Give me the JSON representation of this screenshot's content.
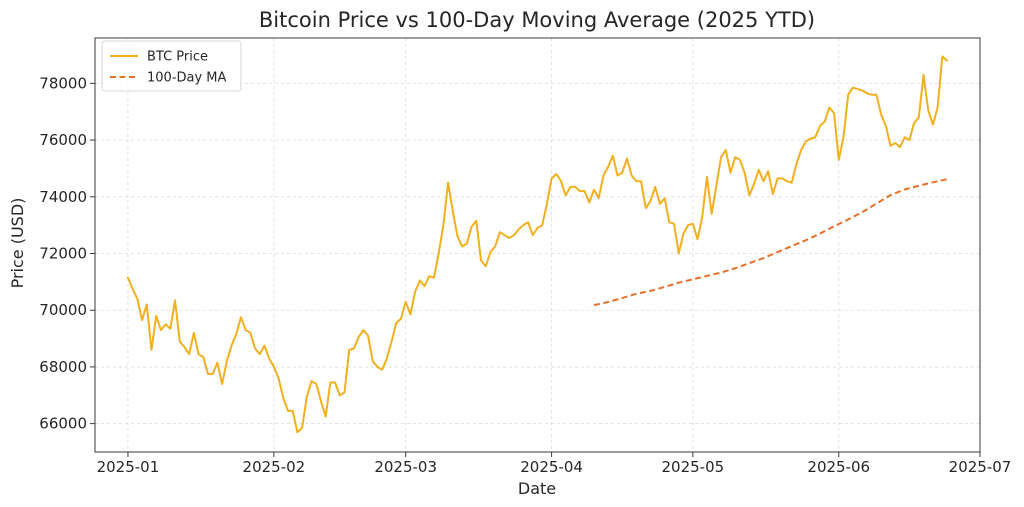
{
  "chart_data": {
    "type": "line",
    "title": "Bitcoin Price vs 100-Day Moving Average (2025 YTD)",
    "xlabel": "Date",
    "ylabel": "Price (USD)",
    "grid": true,
    "legend_position": "top-left",
    "xlim": [
      "2024-12-25",
      "2025-07-01"
    ],
    "ylim": [
      65000,
      79600
    ],
    "x_ticks": [
      "2025-01-01",
      "2025-02-01",
      "2025-03-01",
      "2025-04-01",
      "2025-05-01",
      "2025-06-01",
      "2025-07-01"
    ],
    "x_tick_labels": [
      "2025-01",
      "2025-02",
      "2025-03",
      "2025-04",
      "2025-05",
      "2025-06",
      "2025-07"
    ],
    "y_ticks": [
      66000,
      68000,
      70000,
      72000,
      74000,
      76000,
      78000
    ],
    "y_tick_labels": [
      "66000",
      "68000",
      "70000",
      "72000",
      "74000",
      "76000",
      "78000"
    ],
    "series": [
      {
        "name": "BTC Price",
        "color": "#f2b01e",
        "style": "solid",
        "x": [
          "2025-01-01",
          "2025-01-02",
          "2025-01-03",
          "2025-01-04",
          "2025-01-05",
          "2025-01-06",
          "2025-01-07",
          "2025-01-08",
          "2025-01-09",
          "2025-01-10",
          "2025-01-11",
          "2025-01-12",
          "2025-01-13",
          "2025-01-14",
          "2025-01-15",
          "2025-01-16",
          "2025-01-17",
          "2025-01-18",
          "2025-01-19",
          "2025-01-20",
          "2025-01-21",
          "2025-01-22",
          "2025-01-23",
          "2025-01-24",
          "2025-01-25",
          "2025-01-26",
          "2025-01-27",
          "2025-01-28",
          "2025-01-29",
          "2025-01-30",
          "2025-01-31",
          "2025-02-01",
          "2025-02-02",
          "2025-02-03",
          "2025-02-04",
          "2025-02-05",
          "2025-02-06",
          "2025-02-07",
          "2025-02-08",
          "2025-02-09",
          "2025-02-10",
          "2025-02-11",
          "2025-02-12",
          "2025-02-13",
          "2025-02-14",
          "2025-02-15",
          "2025-02-16",
          "2025-02-17",
          "2025-02-18",
          "2025-02-19",
          "2025-02-20",
          "2025-02-21",
          "2025-02-22",
          "2025-02-23",
          "2025-02-24",
          "2025-02-25",
          "2025-02-26",
          "2025-02-27",
          "2025-02-28",
          "2025-03-01",
          "2025-03-02",
          "2025-03-03",
          "2025-03-04",
          "2025-03-05",
          "2025-03-06",
          "2025-03-07",
          "2025-03-08",
          "2025-03-09",
          "2025-03-10",
          "2025-03-11",
          "2025-03-12",
          "2025-03-13",
          "2025-03-14",
          "2025-03-15",
          "2025-03-16",
          "2025-03-17",
          "2025-03-18",
          "2025-03-19",
          "2025-03-20",
          "2025-03-21",
          "2025-03-22",
          "2025-03-23",
          "2025-03-24",
          "2025-03-25",
          "2025-03-26",
          "2025-03-27",
          "2025-03-28",
          "2025-03-29",
          "2025-03-30",
          "2025-03-31",
          "2025-04-01",
          "2025-04-02",
          "2025-04-03",
          "2025-04-04",
          "2025-04-05",
          "2025-04-06",
          "2025-04-07",
          "2025-04-08",
          "2025-04-09",
          "2025-04-10",
          "2025-04-11",
          "2025-04-12",
          "2025-04-13",
          "2025-04-14",
          "2025-04-15",
          "2025-04-16",
          "2025-04-17",
          "2025-04-18",
          "2025-04-19",
          "2025-04-20",
          "2025-04-21",
          "2025-04-22",
          "2025-04-23",
          "2025-04-24",
          "2025-04-25",
          "2025-04-26",
          "2025-04-27",
          "2025-04-28",
          "2025-04-29",
          "2025-04-30",
          "2025-05-01",
          "2025-05-02",
          "2025-05-03",
          "2025-05-04",
          "2025-05-05",
          "2025-05-06",
          "2025-05-07",
          "2025-05-08",
          "2025-05-09",
          "2025-05-10",
          "2025-05-11",
          "2025-05-12",
          "2025-05-13",
          "2025-05-14",
          "2025-05-15",
          "2025-05-16",
          "2025-05-17",
          "2025-05-18",
          "2025-05-19",
          "2025-05-20",
          "2025-05-21",
          "2025-05-22",
          "2025-05-23",
          "2025-05-24",
          "2025-05-25",
          "2025-05-26",
          "2025-05-27",
          "2025-05-28",
          "2025-05-29",
          "2025-05-30",
          "2025-05-31",
          "2025-06-01",
          "2025-06-02",
          "2025-06-03",
          "2025-06-04",
          "2025-06-05",
          "2025-06-06",
          "2025-06-07",
          "2025-06-08",
          "2025-06-09",
          "2025-06-10",
          "2025-06-11",
          "2025-06-12",
          "2025-06-13",
          "2025-06-14",
          "2025-06-15",
          "2025-06-16",
          "2025-06-17",
          "2025-06-18",
          "2025-06-19",
          "2025-06-20",
          "2025-06-21",
          "2025-06-22",
          "2025-06-23",
          "2025-06-24"
        ],
        "y": [
          71150,
          70750,
          70400,
          69650,
          70200,
          68600,
          69800,
          69300,
          69500,
          69350,
          70350,
          68900,
          68700,
          68450,
          69200,
          68450,
          68350,
          67750,
          67750,
          68150,
          67400,
          68200,
          68750,
          69150,
          69750,
          69300,
          69200,
          68650,
          68450,
          68750,
          68300,
          68000,
          67600,
          66900,
          66450,
          66450,
          65700,
          65850,
          66950,
          67500,
          67400,
          66800,
          66250,
          67450,
          67450,
          67000,
          67100,
          68600,
          68650,
          69050,
          69300,
          69100,
          68200,
          68000,
          67900,
          68300,
          68900,
          69550,
          69700,
          70300,
          69850,
          70650,
          71050,
          70850,
          71200,
          71150,
          72000,
          73000,
          74500,
          73500,
          72600,
          72250,
          72350,
          72950,
          73150,
          71750,
          71550,
          72050,
          72250,
          72750,
          72650,
          72550,
          72650,
          72850,
          73000,
          73100,
          72650,
          72900,
          73000,
          73750,
          74650,
          74800,
          74550,
          74050,
          74350,
          74350,
          74200,
          74200,
          73800,
          74250,
          73950,
          74750,
          75050,
          75450,
          74750,
          74850,
          75350,
          74750,
          74550,
          74550,
          73600,
          73850,
          74350,
          73750,
          73950,
          73100,
          73050,
          72000,
          72700,
          73000,
          73050,
          72500,
          73300,
          74700,
          73400,
          74400,
          75400,
          75650,
          74850,
          75400,
          75300,
          74850,
          74050,
          74450,
          74950,
          74550,
          74900,
          74100,
          74650,
          74650,
          74550,
          74500,
          75150,
          75650,
          75950,
          76050,
          76100,
          76500,
          76650,
          77150,
          76950,
          75300,
          76100,
          77600,
          77850,
          77800,
          77750,
          77650,
          77600,
          77600,
          76900,
          76500,
          75800,
          75900,
          75750,
          76100,
          76000,
          76600,
          76800,
          78300,
          77050,
          76550,
          77150,
          78950,
          78800
        ]
      },
      {
        "name": "100-Day MA",
        "color": "#e8712a",
        "style": "dashed",
        "x": [
          "2025-04-10",
          "2025-04-13",
          "2025-04-16",
          "2025-04-19",
          "2025-04-22",
          "2025-04-25",
          "2025-04-28",
          "2025-05-01",
          "2025-05-04",
          "2025-05-07",
          "2025-05-10",
          "2025-05-13",
          "2025-05-16",
          "2025-05-19",
          "2025-05-22",
          "2025-05-25",
          "2025-05-28",
          "2025-05-31",
          "2025-06-03",
          "2025-06-06",
          "2025-06-09",
          "2025-06-12",
          "2025-06-15",
          "2025-06-18",
          "2025-06-21",
          "2025-06-24"
        ],
        "y": [
          70180,
          70290,
          70430,
          70580,
          70680,
          70820,
          70970,
          71090,
          71210,
          71330,
          71480,
          71660,
          71840,
          72050,
          72260,
          72470,
          72700,
          72960,
          73200,
          73460,
          73760,
          74060,
          74260,
          74390,
          74510,
          74620
        ]
      }
    ]
  }
}
